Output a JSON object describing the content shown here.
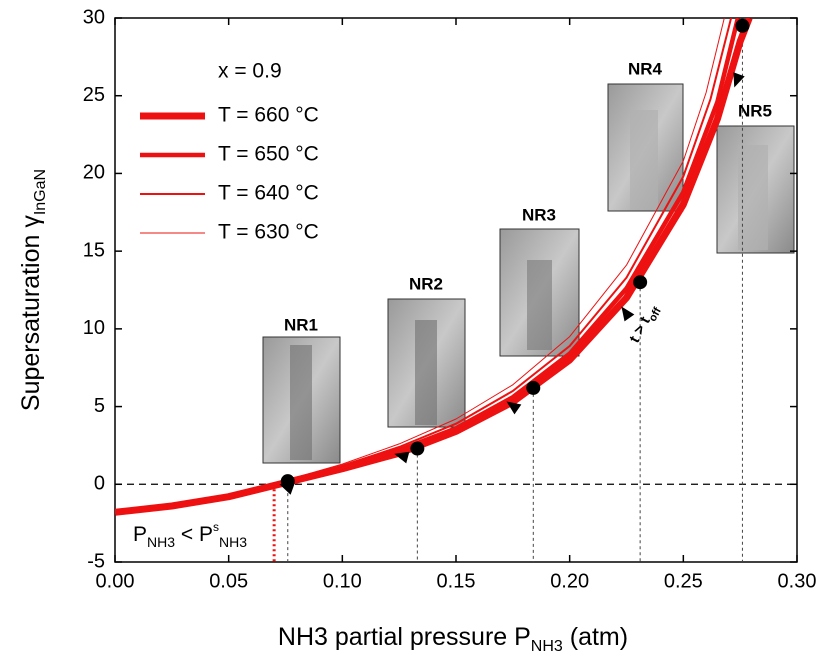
{
  "chart_data": {
    "type": "line",
    "xlabel": [
      "NH3 partial pressure P",
      "NH3",
      " (atm)"
    ],
    "ylabel": [
      "Supersaturation γ",
      "InGaN"
    ],
    "xlim": [
      0,
      0.3
    ],
    "ylim": [
      -5,
      30
    ],
    "xticks": [
      {
        "value": 0,
        "label": "0.00"
      },
      {
        "value": 0.05,
        "label": "0.05"
      },
      {
        "value": 0.1,
        "label": "0.10"
      },
      {
        "value": 0.15,
        "label": "0.15"
      },
      {
        "value": 0.2,
        "label": "0.20"
      },
      {
        "value": 0.25,
        "label": "0.25"
      },
      {
        "value": 0.3,
        "label": "0.30"
      }
    ],
    "yticks": [
      -5,
      0,
      5,
      10,
      15,
      20,
      25,
      30
    ],
    "legend_title": "x = 0.9",
    "legend": "upper left",
    "series": [
      {
        "name": "T = 660 °C",
        "color": "#ee1111",
        "width": 7,
        "x": [
          0,
          0.025,
          0.05,
          0.075,
          0.1,
          0.125,
          0.15,
          0.175,
          0.2,
          0.225,
          0.25,
          0.265,
          0.275,
          0.279
        ],
        "values": [
          -1.8,
          -1.4,
          -0.8,
          0.1,
          1.0,
          2.0,
          3.4,
          5.3,
          8.0,
          12.0,
          18.0,
          23.5,
          28.5,
          30
        ]
      },
      {
        "name": "T = 650 °C",
        "color": "#ee1111",
        "width": 4.5,
        "x": [
          0,
          0.025,
          0.05,
          0.075,
          0.1,
          0.125,
          0.15,
          0.175,
          0.2,
          0.225,
          0.25,
          0.265,
          0.274
        ],
        "values": [
          -1.8,
          -1.4,
          -0.75,
          0.15,
          1.1,
          2.2,
          3.6,
          5.6,
          8.4,
          12.6,
          18.8,
          24.6,
          30
        ]
      },
      {
        "name": "T = 640 °C",
        "color": "#ee1111",
        "width": 2,
        "x": [
          0,
          0.025,
          0.05,
          0.075,
          0.1,
          0.125,
          0.15,
          0.175,
          0.2,
          0.225,
          0.25,
          0.262,
          0.271
        ],
        "values": [
          -1.8,
          -1.35,
          -0.7,
          0.2,
          1.2,
          2.4,
          3.9,
          6.0,
          8.9,
          13.3,
          19.8,
          24.8,
          30
        ]
      },
      {
        "name": "T = 630 °C",
        "color": "#ee1111",
        "width": 1,
        "x": [
          0,
          0.025,
          0.05,
          0.075,
          0.1,
          0.125,
          0.15,
          0.175,
          0.2,
          0.225,
          0.25,
          0.26,
          0.268
        ],
        "values": [
          -1.8,
          -1.3,
          -0.65,
          0.25,
          1.3,
          2.6,
          4.2,
          6.4,
          9.5,
          14.1,
          20.8,
          25.2,
          30
        ]
      }
    ],
    "points": {
      "x": [
        0.076,
        0.133,
        0.184,
        0.231,
        0.276
      ],
      "values": [
        0.2,
        2.3,
        6.2,
        13,
        29.5
      ],
      "labels": [
        "NR1",
        "NR2",
        "NR3",
        "NR4",
        "NR5"
      ]
    },
    "saturation_pressure": 0.07,
    "annotations": {
      "condition": [
        "P",
        "NH3",
        " < P",
        "s",
        "NH3"
      ],
      "time": [
        "t > t",
        "off"
      ]
    }
  }
}
